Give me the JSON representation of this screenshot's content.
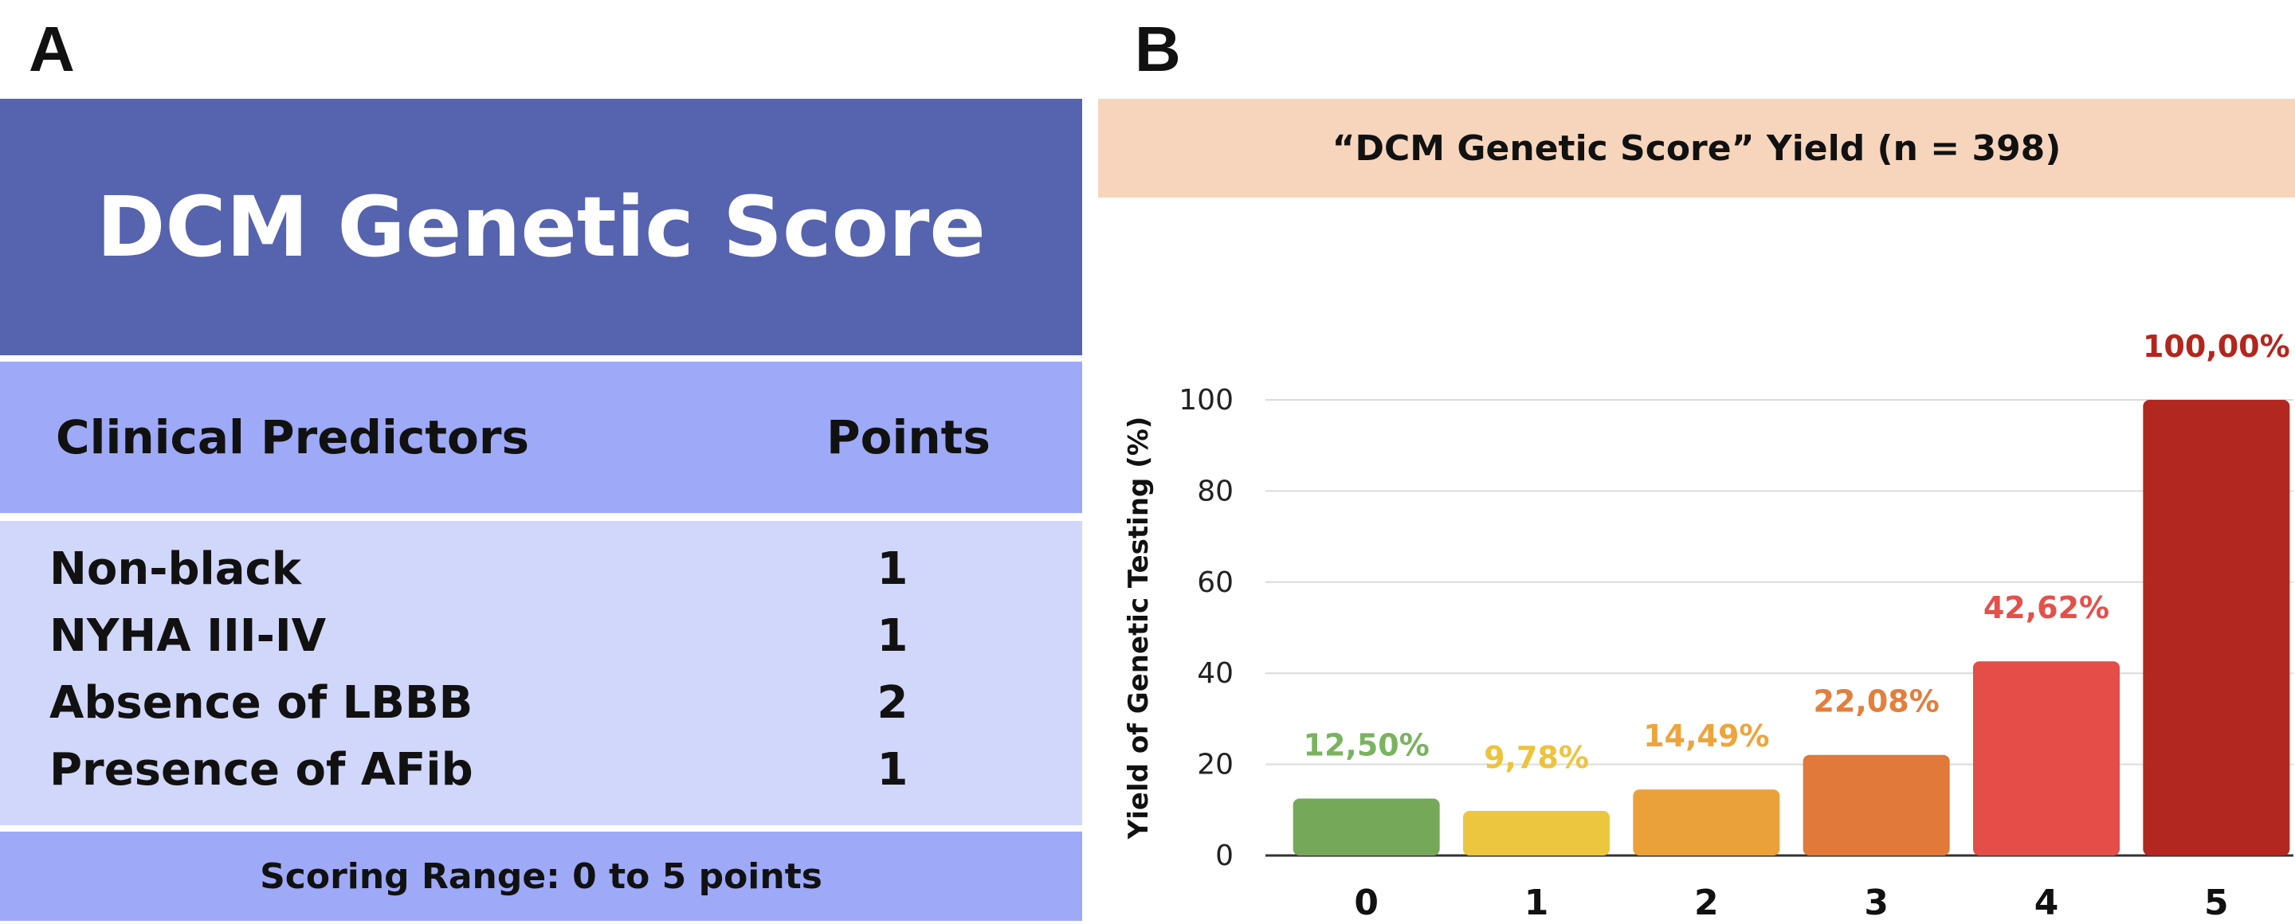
{
  "panel_a": {
    "letter": "A",
    "title": "DCM Genetic Score",
    "header": {
      "predictors": "Clinical Predictors",
      "points": "Points"
    },
    "rows": [
      {
        "predictor": "Non-black",
        "points": "1"
      },
      {
        "predictor": "NYHA III-IV",
        "points": "1"
      },
      {
        "predictor": "Absence of LBBB",
        "points": "2"
      },
      {
        "predictor": "Presence of AFib",
        "points": "1"
      }
    ],
    "footer": "Scoring Range: 0 to 5 points",
    "colors": {
      "title_bg": "#5663ae",
      "header_bg": "#9ea9f7",
      "body_bg": "#d1d6fb"
    }
  },
  "panel_b": {
    "letter": "B",
    "title_bg": "#f7d5bc"
  },
  "chart_data": {
    "type": "bar",
    "title": "“DCM Genetic Score” Yield (n = 398)",
    "xlabel": "",
    "ylabel": "Yield of Genetic Testing (%)",
    "categories": [
      "0",
      "1",
      "2",
      "3",
      "4",
      "5"
    ],
    "values": [
      12.5,
      9.78,
      14.49,
      22.08,
      42.62,
      100.0
    ],
    "data_labels": [
      "12,50%",
      "9,78%",
      "14,49%",
      "22,08%",
      "42,62%",
      "100,00%"
    ],
    "bar_colors": [
      "#76a85a",
      "#ecc63f",
      "#eba13a",
      "#e0793a",
      "#e44d48",
      "#b2271f"
    ],
    "label_colors": [
      "#7ab35f",
      "#edc33d",
      "#eea43c",
      "#e47e3c",
      "#e5504a",
      "#b3261e"
    ],
    "ylim": [
      0,
      100
    ],
    "yticks": [
      0,
      20,
      40,
      60,
      80,
      100
    ],
    "grid": true,
    "legend": "none"
  }
}
